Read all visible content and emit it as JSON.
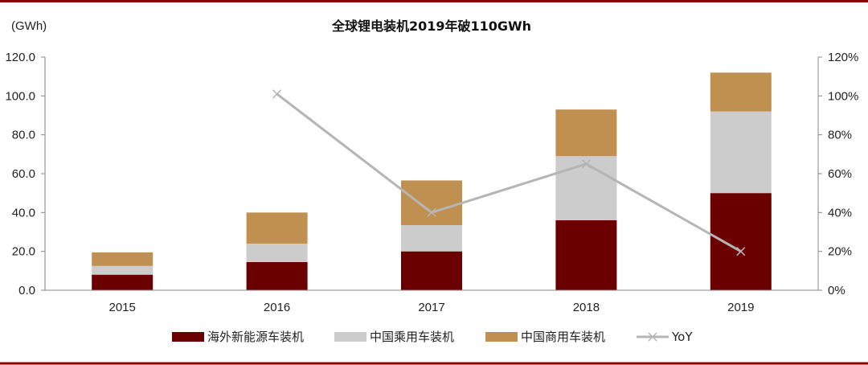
{
  "chart_data": {
    "type": "bar",
    "stacked": true,
    "title": "全球锂电装机2019年破110GWh",
    "y_unit_label": "(GWh)",
    "categories": [
      "2015",
      "2016",
      "2017",
      "2018",
      "2019"
    ],
    "ylim": [
      0,
      120
    ],
    "y_ticks": [
      "0.0",
      "20.0",
      "40.0",
      "60.0",
      "80.0",
      "100.0",
      "120.0"
    ],
    "y2lim": [
      0,
      1.2
    ],
    "y2_ticks": [
      "0%",
      "20%",
      "40%",
      "60%",
      "80%",
      "100%",
      "120%"
    ],
    "grid": false,
    "legend_position": "bottom",
    "series": [
      {
        "name": "海外新能源车装机",
        "type": "bar",
        "axis": "left",
        "color": "#6b0000",
        "values": [
          8,
          14.5,
          20,
          36,
          50
        ]
      },
      {
        "name": "中国乘用车装机",
        "type": "bar",
        "axis": "left",
        "color": "#cccccc",
        "values": [
          4.5,
          9.5,
          13.5,
          33,
          42
        ]
      },
      {
        "name": "中国商用车装机",
        "type": "bar",
        "axis": "left",
        "color": "#c09050",
        "values": [
          7,
          16,
          23,
          24,
          20
        ]
      },
      {
        "name": "YoY",
        "type": "line",
        "axis": "right",
        "color": "#b5b5b5",
        "values": [
          null,
          1.01,
          0.4,
          0.65,
          0.2
        ]
      }
    ]
  },
  "colors": {
    "border": "#8b0000"
  }
}
